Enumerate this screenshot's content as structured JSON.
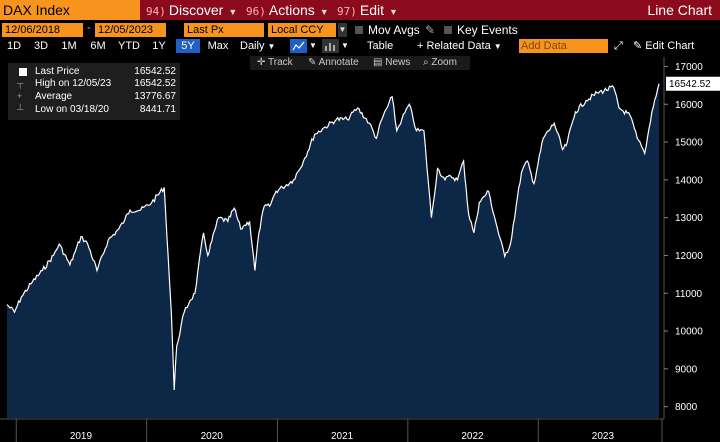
{
  "header": {
    "ticker": "DAX Index",
    "menus": [
      {
        "num": "94)",
        "label": "Discover"
      },
      {
        "num": "96)",
        "label": "Actions"
      },
      {
        "num": "97)",
        "label": "Edit"
      }
    ],
    "chart_title": "Line Chart"
  },
  "fields": {
    "start_date": "12/06/2018",
    "end_date": "12/05/2023",
    "price_field": "Last Px",
    "currency": "Local CCY",
    "mov_avgs": "Mov Avgs",
    "key_events": "Key Events"
  },
  "toolbar": {
    "ranges": [
      "1D",
      "3D",
      "1M",
      "6M",
      "YTD",
      "1Y",
      "5Y",
      "Max"
    ],
    "selected_range": "5Y",
    "frequency": "Daily",
    "table": "Table",
    "related_data": "+ Related Data",
    "add_data_placeholder": "Add Data",
    "edit_chart": "Edit Chart"
  },
  "tools": {
    "track": "Track",
    "annotate": "Annotate",
    "news": "News",
    "zoom": "Zoom"
  },
  "legend": {
    "items": [
      {
        "label": "Last Price",
        "value": "16542.52"
      },
      {
        "label": "High on 12/05/23",
        "value": "16542.52"
      },
      {
        "label": "Average",
        "value": "13776.67"
      },
      {
        "label": "Low on 03/18/20",
        "value": "8441.71"
      }
    ]
  },
  "colors": {
    "title_bar": "#8b0a1c",
    "field": "#f7941d",
    "area_fill": "#0d2746",
    "line": "#ffffff",
    "selected": "#1f5fc6"
  },
  "chart_data": {
    "type": "area",
    "title": "DAX Index",
    "x_tick_labels": [
      "2019",
      "2020",
      "2021",
      "2022",
      "2023"
    ],
    "y_ticks": [
      8000,
      9000,
      10000,
      11000,
      12000,
      13000,
      14000,
      15000,
      16000,
      17000
    ],
    "ylim": [
      7700,
      17250
    ],
    "xlim": [
      "2018-12-06",
      "2023-12-05"
    ],
    "last_value_label": "16542.52",
    "grid": false,
    "series": [
      {
        "name": "Last Price",
        "x": [
          "2018-12-06",
          "2018-12-27",
          "2019-01-15",
          "2019-02-15",
          "2019-03-15",
          "2019-04-15",
          "2019-05-01",
          "2019-05-31",
          "2019-06-15",
          "2019-07-01",
          "2019-07-20",
          "2019-08-15",
          "2019-09-15",
          "2019-10-15",
          "2019-11-01",
          "2019-11-15",
          "2019-12-15",
          "2020-01-15",
          "2020-02-19",
          "2020-03-01",
          "2020-03-10",
          "2020-03-18",
          "2020-03-25",
          "2020-04-15",
          "2020-05-01",
          "2020-05-15",
          "2020-06-08",
          "2020-06-20",
          "2020-07-20",
          "2020-08-15",
          "2020-09-02",
          "2020-09-20",
          "2020-10-01",
          "2020-10-15",
          "2020-10-30",
          "2020-11-10",
          "2020-11-25",
          "2020-12-10",
          "2020-12-28",
          "2021-01-15",
          "2021-02-15",
          "2021-03-15",
          "2021-04-15",
          "2021-05-15",
          "2021-06-15",
          "2021-07-15",
          "2021-08-13",
          "2021-09-15",
          "2021-10-05",
          "2021-10-20",
          "2021-11-18",
          "2021-12-01",
          "2021-12-15",
          "2022-01-05",
          "2022-01-25",
          "2022-02-15",
          "2022-03-08",
          "2022-03-25",
          "2022-04-15",
          "2022-05-01",
          "2022-05-20",
          "2022-06-06",
          "2022-06-20",
          "2022-07-05",
          "2022-07-20",
          "2022-08-15",
          "2022-09-01",
          "2022-09-29",
          "2022-10-15",
          "2022-10-31",
          "2022-11-15",
          "2022-12-01",
          "2022-12-20",
          "2023-01-15",
          "2023-02-15",
          "2023-03-10",
          "2023-03-20",
          "2023-04-15",
          "2023-05-15",
          "2023-06-15",
          "2023-07-31",
          "2023-08-15",
          "2023-09-15",
          "2023-10-05",
          "2023-10-26",
          "2023-11-15",
          "2023-12-05"
        ],
        "values": [
          10700,
          10500,
          10900,
          11300,
          11600,
          12000,
          12300,
          11750,
          12100,
          12500,
          12300,
          11600,
          12400,
          12700,
          12950,
          13200,
          13200,
          13400,
          13800,
          12000,
          10500,
          8441.71,
          9600,
          10500,
          10800,
          11000,
          12600,
          12000,
          13000,
          12900,
          13250,
          12700,
          12800,
          12900,
          11600,
          12600,
          13300,
          13300,
          13700,
          13800,
          14000,
          14500,
          15200,
          15400,
          15600,
          15600,
          15900,
          15500,
          15100,
          15600,
          16200,
          15300,
          15600,
          16000,
          15300,
          15300,
          13000,
          14300,
          14000,
          14100,
          14000,
          14500,
          13100,
          12600,
          13400,
          13700,
          13000,
          11975,
          12300,
          13300,
          14200,
          14500,
          13900,
          15100,
          15500,
          14800,
          14900,
          15800,
          16100,
          16300,
          16450,
          15900,
          15700,
          15100,
          14700,
          15800,
          16542.52
        ]
      }
    ]
  }
}
